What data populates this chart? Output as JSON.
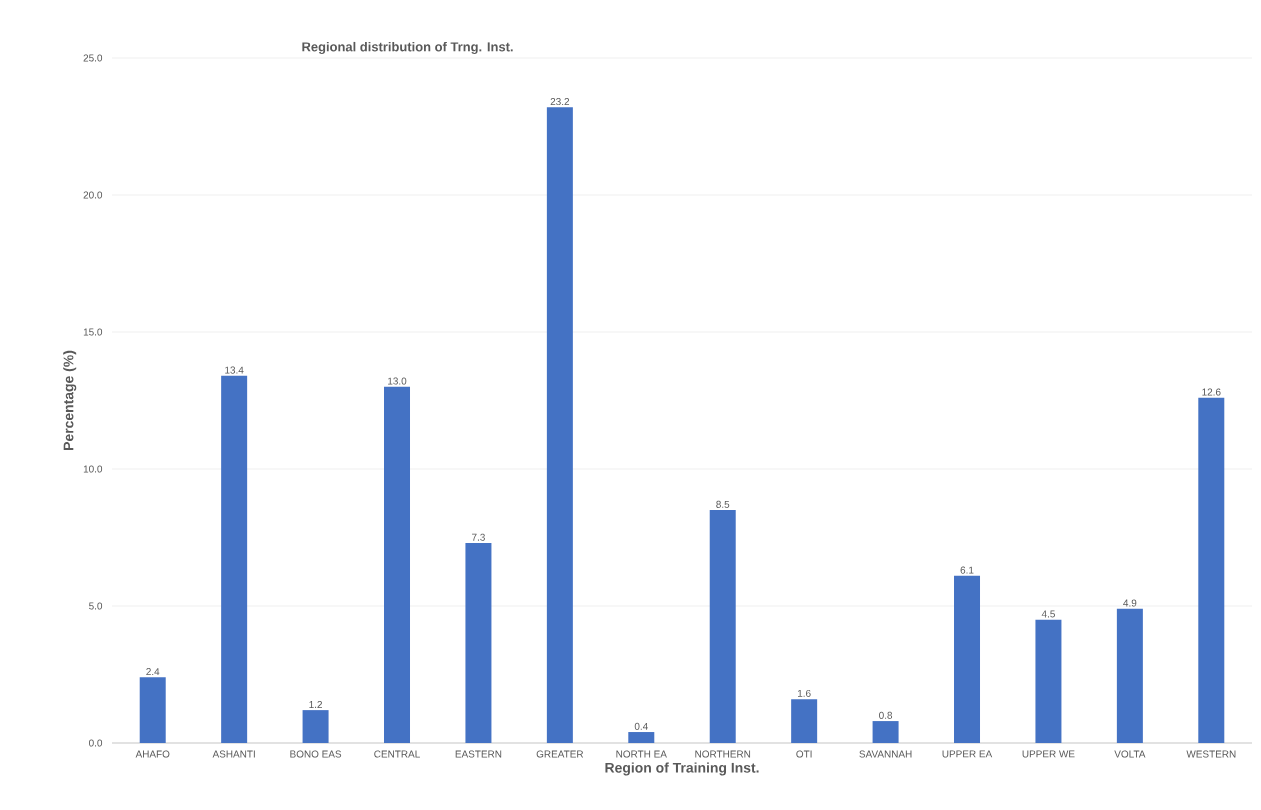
{
  "chart_data": {
    "type": "bar",
    "title": "Regional distribution of Trng. Inst.",
    "xlabel": "Region of Training Inst.",
    "ylabel": "Percentage (%)",
    "categories": [
      "AHAFO",
      "ASHANTI",
      "BONO EAS",
      "CENTRAL",
      "EASTERN",
      "GREATER",
      "NORTH EA",
      "NORTHERN",
      "OTI",
      "SAVANNAH",
      "UPPER EA",
      "UPPER WE",
      "VOLTA",
      "WESTERN"
    ],
    "values": [
      2.4,
      13.4,
      1.2,
      13.0,
      7.3,
      23.2,
      0.4,
      8.5,
      1.6,
      0.8,
      6.1,
      4.5,
      4.9,
      12.6
    ],
    "value_labels": [
      "2.4",
      "13.4",
      "1.2",
      "13.0",
      "7.3",
      "23.2",
      "0.4",
      "8.5",
      "1.6",
      "0.8",
      "6.1",
      "4.5",
      "4.9",
      "12.6"
    ],
    "color": "#4472c4",
    "ylim": [
      0,
      25
    ],
    "yticks": [
      {
        "value": 0,
        "label": "0.0"
      },
      {
        "value": 5,
        "label": "5.0"
      },
      {
        "value": 10,
        "label": "10.0"
      },
      {
        "value": 15,
        "label": "15.0"
      },
      {
        "value": 20,
        "label": "20.0"
      },
      {
        "value": 25,
        "label": "25.0"
      }
    ],
    "grid": "y",
    "legend": false
  }
}
